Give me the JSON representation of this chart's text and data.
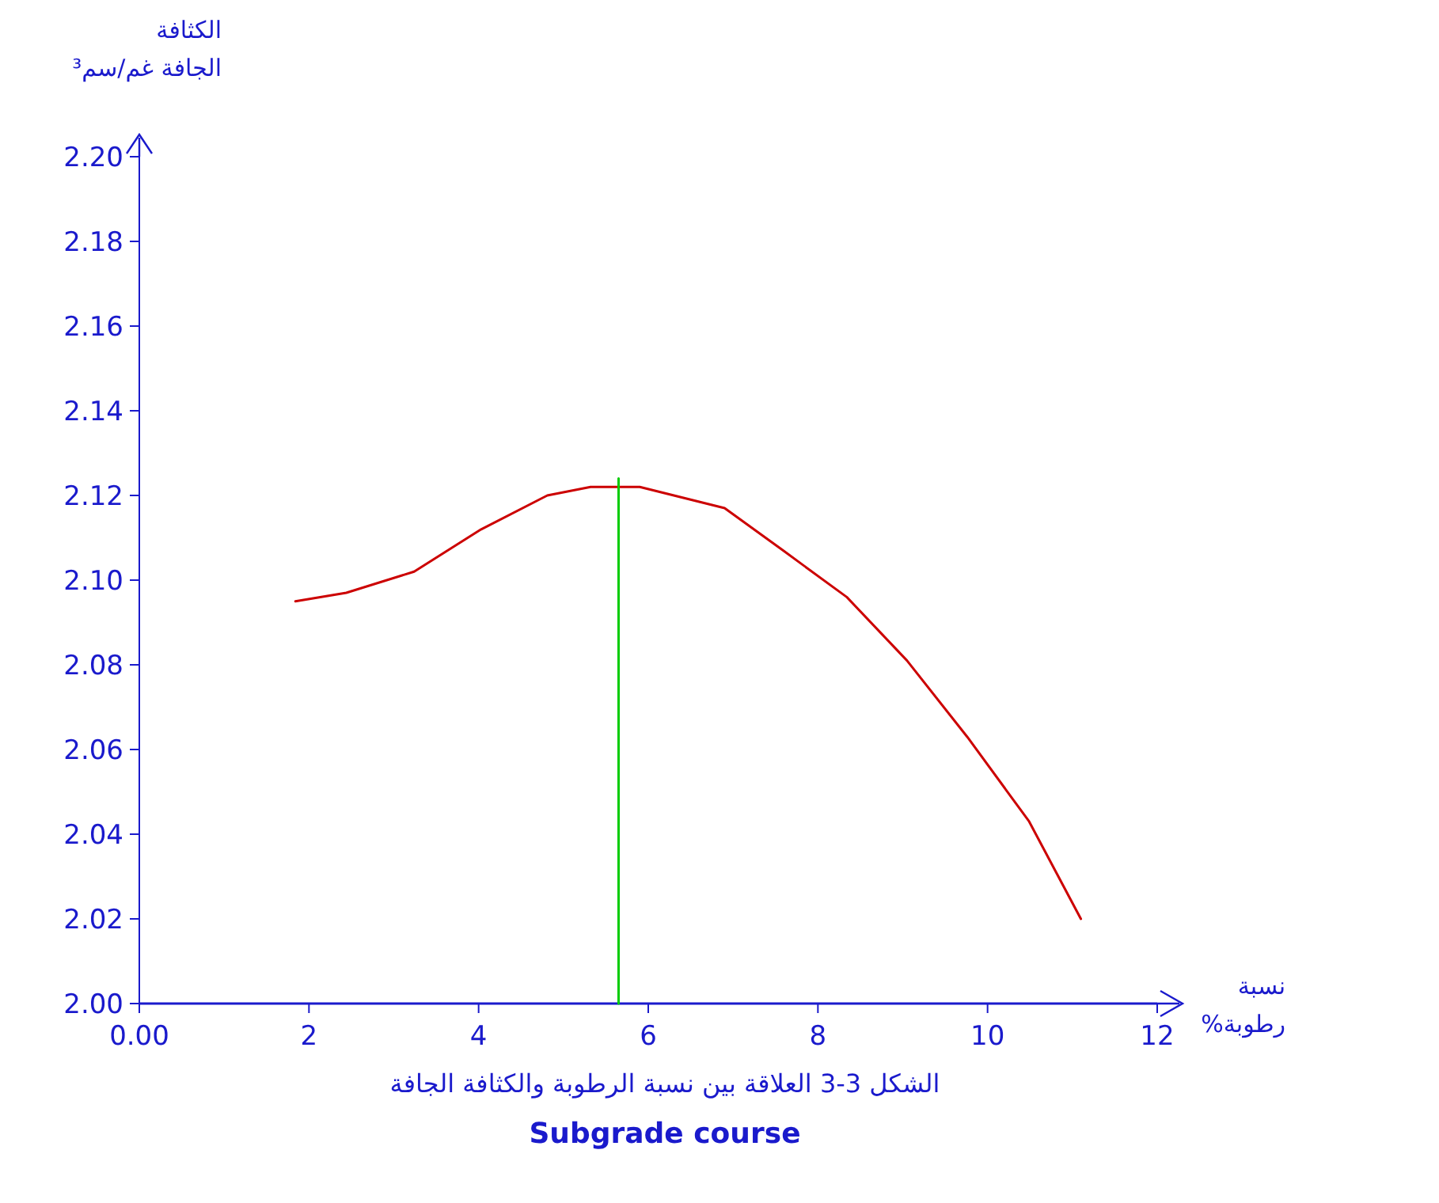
{
  "chart_data": {
    "type": "line",
    "title": "الشكل 3-3 العلاقة بين نسبة الرطوبة والكثافة الجافة",
    "subtitle": "Subgrade course",
    "xlabel": "نسبة رطوبة%",
    "ylabel": "الكثافة الجافة غم/سم³",
    "xlim": [
      0,
      12
    ],
    "xticks": [
      {
        "value": 0,
        "label": "0.00"
      },
      2,
      4,
      6,
      8,
      10,
      12
    ],
    "ylim": [
      2.0,
      2.2
    ],
    "yticks": [
      {
        "value": 2.0,
        "label": "2.00"
      },
      {
        "value": 2.02,
        "label": "2.02"
      },
      {
        "value": 2.04,
        "label": "2.04"
      },
      {
        "value": 2.06,
        "label": "2.06"
      },
      {
        "value": 2.08,
        "label": "2.08"
      },
      {
        "value": 2.1,
        "label": "2.10"
      },
      {
        "value": 2.12,
        "label": "2.12"
      },
      {
        "value": 2.14,
        "label": "2.14"
      },
      {
        "value": 2.16,
        "label": "2.16"
      },
      {
        "value": 2.18,
        "label": "2.18"
      },
      {
        "value": 2.2,
        "label": "2.20"
      }
    ],
    "series": [
      {
        "color": "#cc0000",
        "x": [
          1.84,
          2.44,
          3.24,
          4.03,
          4.81,
          5.32,
          5.9,
          6.9,
          7.59,
          8.34,
          9.05,
          9.76,
          10.49,
          11.1
        ],
        "values": [
          2.095,
          2.097,
          2.102,
          2.112,
          2.12,
          2.122,
          2.122,
          2.117,
          2.107,
          2.096,
          2.081,
          2.063,
          2.043,
          2.02
        ]
      },
      {
        "color": "#00cc00",
        "x": [
          5.65,
          5.65
        ],
        "values": [
          2.0,
          2.124
        ]
      }
    ]
  }
}
